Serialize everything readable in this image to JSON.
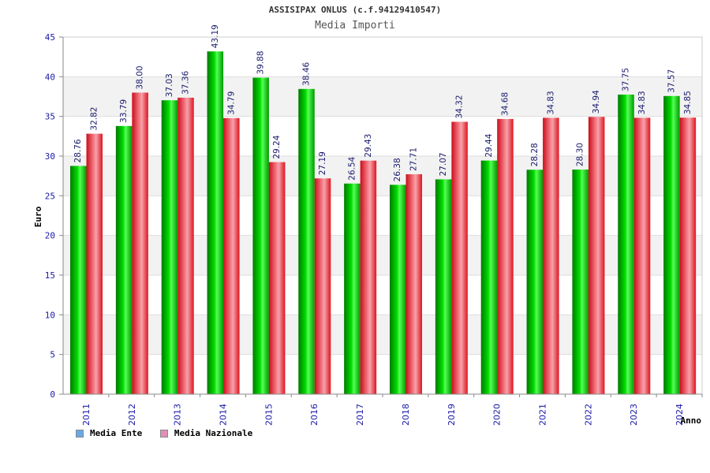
{
  "chart_data": {
    "type": "bar",
    "title": "ASSISIPAX ONLUS (c.f.94129410547)",
    "subtitle": "Media Importi",
    "xlabel": "Anno",
    "ylabel": "Euro",
    "ylim": [
      0,
      45
    ],
    "yticks": [
      0,
      5,
      10,
      15,
      20,
      25,
      30,
      35,
      40,
      45
    ],
    "grid": true,
    "legend_position": "bottom-left",
    "categories": [
      "2011",
      "2012",
      "2013",
      "2014",
      "2015",
      "2016",
      "2017",
      "2018",
      "2019",
      "2020",
      "2021",
      "2022",
      "2023",
      "2024"
    ],
    "series": [
      {
        "name": "Media Ente",
        "bar_color": "#00cc00",
        "legend_color": "#6aa9e8",
        "values": [
          28.76,
          33.79,
          37.03,
          43.19,
          39.88,
          38.46,
          26.54,
          26.38,
          27.07,
          29.44,
          28.28,
          28.3,
          37.75,
          37.57
        ],
        "labels": [
          "28.76",
          "33.79",
          "37.03",
          "43.19",
          "39.88",
          "38.46",
          "26.54",
          "26.38",
          "27.07",
          "29.44",
          "28.28",
          "28.30",
          "37.75",
          "37.57"
        ]
      },
      {
        "name": "Media Nazionale",
        "bar_color": "#e8202a",
        "legend_color": "#e090b8",
        "values": [
          32.82,
          38.0,
          37.36,
          34.79,
          29.24,
          27.19,
          29.43,
          27.71,
          34.32,
          34.68,
          34.83,
          34.94,
          34.83,
          34.85
        ],
        "labels": [
          "32.82",
          "38.00",
          "37.36",
          "34.79",
          "29.24",
          "27.19",
          "29.43",
          "27.71",
          "34.32",
          "34.68",
          "34.83",
          "34.94",
          "34.83",
          "34.85"
        ]
      }
    ]
  }
}
